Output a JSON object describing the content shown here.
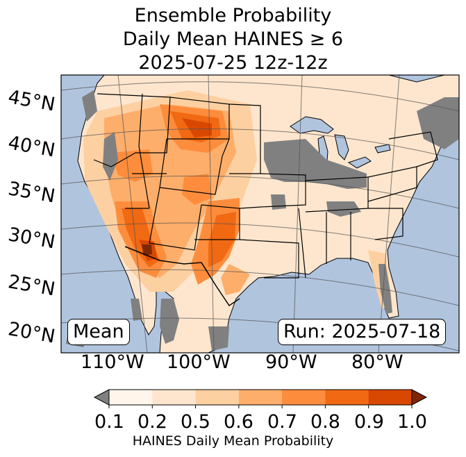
{
  "title": {
    "line1": "Ensemble Probability",
    "line2": "Daily Mean HAINES ≥ 6",
    "line3": "2025-07-25 12z-12z"
  },
  "map": {
    "region": "CONUS",
    "ocean_color": "#b0c4de",
    "land_color": "#ffffff",
    "missing_color": "#808080",
    "latitude_labels": [
      "45°N",
      "40°N",
      "35°N",
      "30°N",
      "25°N",
      "20°N"
    ],
    "longitude_labels": [
      "110°W",
      "100°W",
      "90°W",
      "80°W"
    ]
  },
  "annotations": {
    "stat": "Mean",
    "run": "Run: 2025-07-18"
  },
  "colorbar": {
    "label": "HAINES Daily Mean Probability",
    "ticks": [
      "0.1",
      "0.2",
      "0.5",
      "0.6",
      "0.7",
      "0.8",
      "0.9",
      "1.0"
    ],
    "under_color": "#808080",
    "over_color": "#7f2704",
    "colors": [
      "#fff5eb",
      "#fee6ce",
      "#fdd0a2",
      "#fdae6b",
      "#fd8d3c",
      "#f16913",
      "#d94801"
    ]
  }
}
